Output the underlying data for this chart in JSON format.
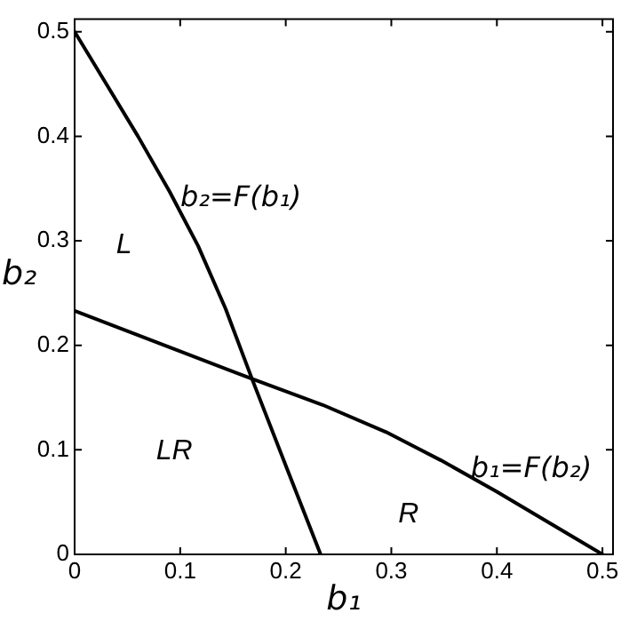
{
  "chart_data": {
    "type": "line",
    "xlabel": "b₁",
    "ylabel": "b₂",
    "xlim": [
      0,
      0.51
    ],
    "ylim": [
      0,
      0.512
    ],
    "xticks": [
      0,
      0.1,
      0.2,
      0.3,
      0.4,
      0.5
    ],
    "yticks": [
      0,
      0.1,
      0.2,
      0.3,
      0.4,
      0.5
    ],
    "grid": false,
    "legend": false,
    "marker": "none",
    "line_style": "solid",
    "series": [
      {
        "color": "#000000",
        "x": [
          0,
          0.03,
          0.06,
          0.09,
          0.117,
          0.143,
          0.168,
          0.2,
          0.233
        ],
        "values": [
          0.5,
          0.45,
          0.4,
          0.347,
          0.295,
          0.235,
          0.168,
          0.085,
          0
        ]
      },
      {
        "color": "#000000",
        "x": [
          0.5,
          0.45,
          0.4,
          0.347,
          0.295,
          0.235,
          0.168,
          0.085,
          0
        ],
        "values": [
          0,
          0.03,
          0.06,
          0.09,
          0.117,
          0.143,
          0.168,
          0.2,
          0.233
        ]
      }
    ],
    "annotations": [
      {
        "text": "b₂=F(b₁)",
        "x": 0.095,
        "y": 0.338
      },
      {
        "text": "b₁=F(b₂)",
        "x": 0.37,
        "y": 0.079
      },
      "L",
      "LR",
      "R"
    ]
  }
}
